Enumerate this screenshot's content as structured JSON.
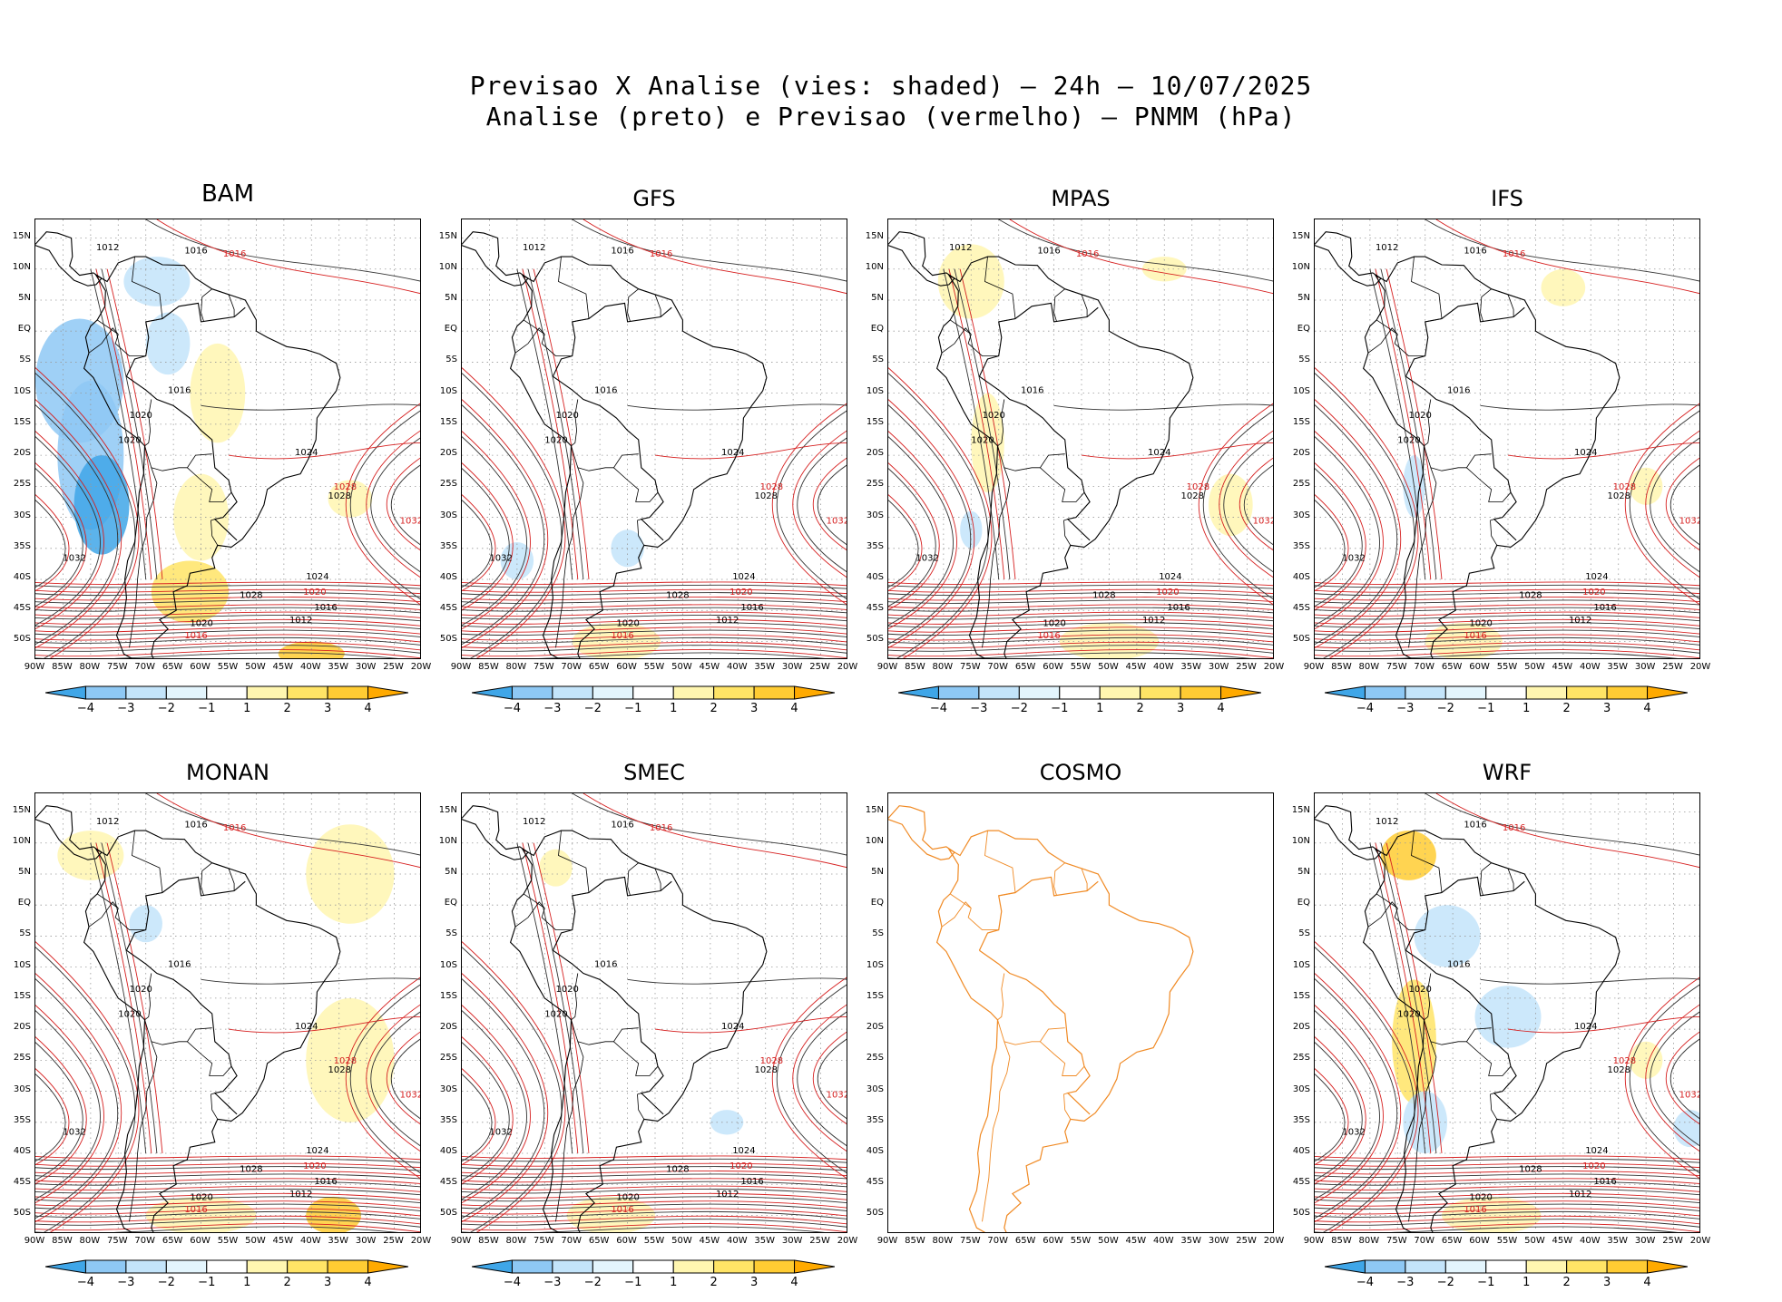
{
  "title_line1": "Previsao X Analise (vies: shaded) – 24h – 10/07/2025",
  "title_line2": "Analise (preto) e Previsao (vermelho) – PNMM (hPa)",
  "lat_labels": [
    "15N",
    "10N",
    "5N",
    "EQ",
    "5S",
    "10S",
    "15S",
    "20S",
    "25S",
    "30S",
    "35S",
    "40S",
    "45S",
    "50S"
  ],
  "lon_labels": [
    "90W",
    "85W",
    "80W",
    "75W",
    "70W",
    "65W",
    "60W",
    "55W",
    "50W",
    "45W",
    "40W",
    "35W",
    "30W",
    "25W",
    "20W"
  ],
  "colorbar": {
    "labels": [
      "−4",
      "−3",
      "−2",
      "−1",
      "1",
      "2",
      "3",
      "4"
    ],
    "colors": [
      "#3fa6e8",
      "#8ec8f4",
      "#c3e4fa",
      "#e3f5fd",
      "#ffffff",
      "#fff6b0",
      "#ffe466",
      "#ffcc33",
      "#ffaa00"
    ]
  },
  "panels": [
    {
      "name": "BAM",
      "has_colorbar": true,
      "big": true
    },
    {
      "name": "GFS",
      "has_colorbar": true
    },
    {
      "name": "MPAS",
      "has_colorbar": true
    },
    {
      "name": "IFS",
      "has_colorbar": true
    },
    {
      "name": "MONAN",
      "has_colorbar": true
    },
    {
      "name": "SMEC",
      "has_colorbar": true
    },
    {
      "name": "COSMO",
      "has_colorbar": false
    },
    {
      "name": "WRF",
      "has_colorbar": true
    }
  ],
  "isobar_labels": [
    "1012",
    "1016",
    "1020",
    "1024",
    "1028",
    "1032"
  ]
}
